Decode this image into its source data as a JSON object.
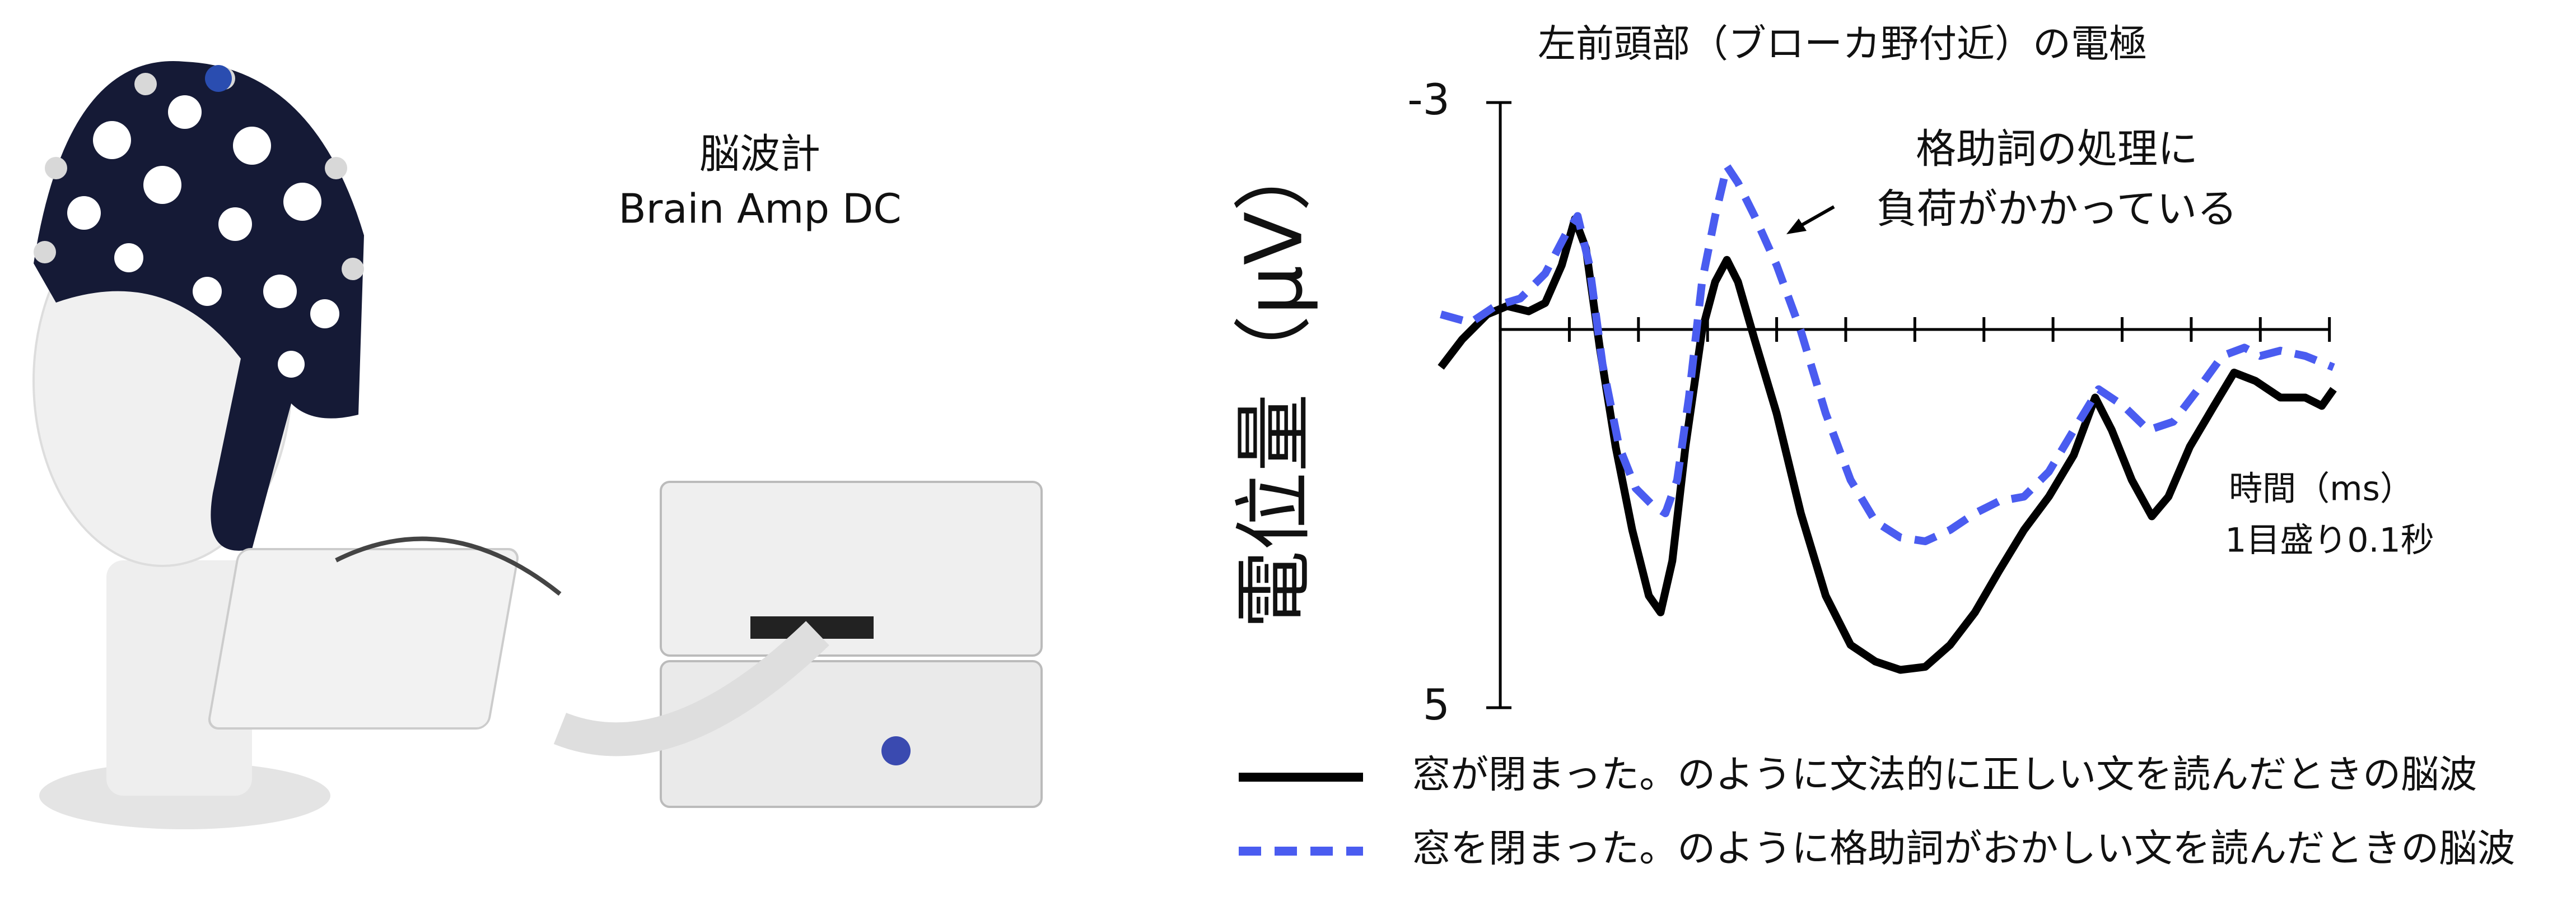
{
  "photo_caption": [
    "脳波計",
    "Brain Amp DC"
  ],
  "chart_data": {
    "type": "line",
    "title": "左前頭部（ブローカ野付近）の電極",
    "y_label": "電位量（μV）",
    "x_label": "時間（ms）",
    "x_note": "1目盛り0.1秒",
    "annotation": [
      "格助詞の処理に",
      "負荷がかかっている"
    ],
    "xlim": [
      -90,
      1210
    ],
    "xticks": [
      0,
      100,
      200,
      300,
      400,
      500,
      600,
      700,
      800,
      900,
      1000,
      1100,
      1200
    ],
    "ylim": [
      -3,
      5
    ],
    "y_inverted": true,
    "yticks": [
      -3,
      5
    ],
    "legend": "bottom",
    "series": [
      {
        "name": "窓が閉まった。のように文法的に正しい文を読んだときの脳波",
        "color": "#000000",
        "dashed": false,
        "x": [
          -86,
          -55,
          -19,
          10,
          41,
          65,
          89,
          108,
          124,
          144,
          167,
          191,
          215,
          232,
          249,
          268,
          292,
          311,
          328,
          344,
          368,
          400,
          435,
          471,
          507,
          543,
          579,
          615,
          651,
          687,
          722,
          758,
          794,
          830,
          861,
          885,
          914,
          943,
          967,
          998,
          1033,
          1062,
          1093,
          1129,
          1165,
          1189,
          1206
        ],
        "values": [
          0.5,
          0.13,
          -0.2,
          -0.31,
          -0.24,
          -0.35,
          -0.85,
          -1.46,
          -1.07,
          0.24,
          1.55,
          2.65,
          3.52,
          3.74,
          3.06,
          1.55,
          0.02,
          -0.63,
          -0.92,
          -0.63,
          0.13,
          1.11,
          2.43,
          3.52,
          4.17,
          4.39,
          4.5,
          4.46,
          4.17,
          3.74,
          3.19,
          2.65,
          2.21,
          1.66,
          0.9,
          1.33,
          1.99,
          2.47,
          2.21,
          1.55,
          1.01,
          0.57,
          0.68,
          0.9,
          0.9,
          1.01,
          0.79
        ]
      },
      {
        "name": "窓を閉まった。のように格助詞がおかしい文を読んだときの脳波",
        "color": "#4a5cf0",
        "dashed": true,
        "x": [
          -86,
          -43,
          -7,
          29,
          65,
          96,
          112,
          129,
          148,
          172,
          196,
          220,
          239,
          256,
          273,
          292,
          311,
          328,
          344,
          368,
          400,
          435,
          471,
          507,
          543,
          579,
          615,
          651,
          687,
          722,
          758,
          794,
          830,
          866,
          902,
          938,
          974,
          1010,
          1045,
          1077,
          1100,
          1129,
          1165,
          1206
        ],
        "values": [
          -0.2,
          -0.09,
          -0.31,
          -0.41,
          -0.74,
          -1.28,
          -1.5,
          -0.85,
          0.46,
          1.55,
          2.1,
          2.32,
          2.43,
          1.99,
          0.9,
          -0.63,
          -1.5,
          -2.16,
          -1.94,
          -1.5,
          -0.85,
          0.02,
          1.11,
          1.99,
          2.54,
          2.75,
          2.8,
          2.65,
          2.43,
          2.27,
          2.21,
          1.88,
          1.33,
          0.79,
          1.01,
          1.33,
          1.22,
          0.79,
          0.35,
          0.24,
          0.35,
          0.28,
          0.35,
          0.5
        ]
      }
    ]
  }
}
